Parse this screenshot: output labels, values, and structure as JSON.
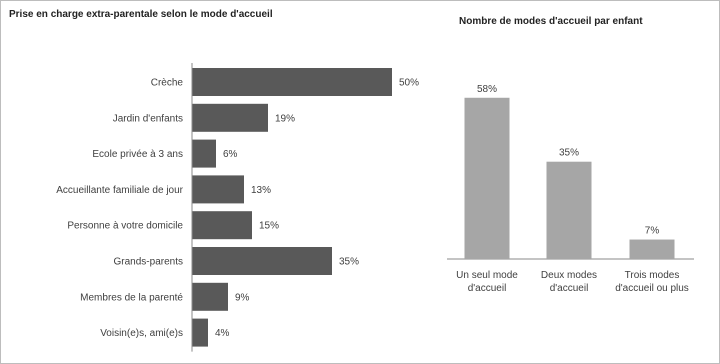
{
  "chart_data": [
    {
      "type": "bar",
      "orientation": "horizontal",
      "title": "Prise en charge extra-parentale selon le mode d'accueil",
      "categories": [
        "Crèche",
        "Jardin d'enfants",
        "Ecole privée à 3 ans",
        "Accueillante familiale de jour",
        "Personne à votre domicile",
        "Grands-parents",
        "Membres de la parenté",
        "Voisin(e)s, ami(e)s"
      ],
      "values": [
        50,
        19,
        6,
        13,
        15,
        35,
        9,
        4
      ],
      "value_labels": [
        "50%",
        "19%",
        "6%",
        "13%",
        "15%",
        "35%",
        "9%",
        "4%"
      ],
      "unit": "%",
      "color": "#595959",
      "grid": false
    },
    {
      "type": "bar",
      "orientation": "vertical",
      "title": "Nombre de modes d'accueil par enfant",
      "categories": [
        [
          "Un seul mode",
          "d'accueil"
        ],
        [
          "Deux modes",
          "d'accueil"
        ],
        [
          "Trois modes",
          "d'accueil ou plus"
        ]
      ],
      "values": [
        58,
        35,
        7
      ],
      "value_labels": [
        "58%",
        "35%",
        "7%"
      ],
      "unit": "%",
      "color": "#a6a6a6",
      "grid": false
    }
  ]
}
